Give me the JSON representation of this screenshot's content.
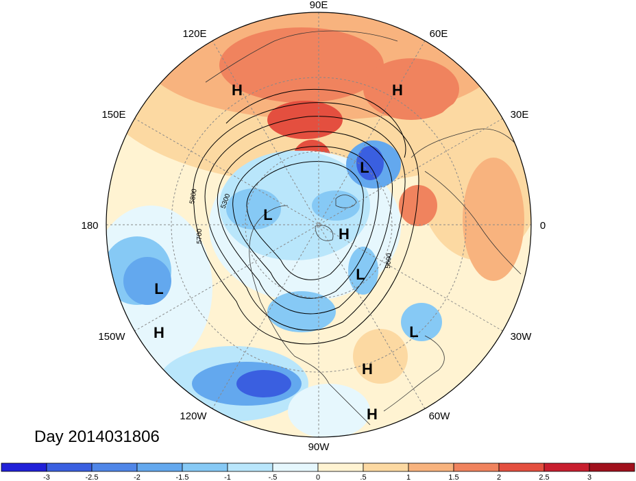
{
  "map": {
    "title": "Day 2014031806",
    "longitude_labels": [
      "90E",
      "60E",
      "30E",
      "0",
      "30W",
      "60W",
      "90W",
      "120W",
      "150W",
      "180",
      "150E",
      "120E"
    ],
    "pressure_centers": [
      {
        "type": "H"
      },
      {
        "type": "H"
      },
      {
        "type": "L"
      },
      {
        "type": "L"
      },
      {
        "type": "H"
      },
      {
        "type": "L"
      },
      {
        "type": "L"
      },
      {
        "type": "H"
      },
      {
        "type": "L"
      },
      {
        "type": "H"
      },
      {
        "type": "H"
      }
    ],
    "contour_labels": [
      "5800",
      "5300",
      "5700",
      "5600"
    ]
  },
  "colorbar": {
    "ticks": [
      "-3",
      "-2.5",
      "-2",
      "-1.5",
      "-1",
      "-.5",
      "0",
      ".5",
      "1",
      "1.5",
      "2",
      "2.5",
      "3"
    ],
    "colors": [
      "#2020d8",
      "#3a5fe0",
      "#4f86e8",
      "#63a8ee",
      "#86c9f5",
      "#b9e6fb",
      "#e6f7fd",
      "#fff3d2",
      "#fcd9a2",
      "#f8b37e",
      "#f0835e",
      "#e44f3f",
      "#c81e2e",
      "#a0101c"
    ]
  }
}
